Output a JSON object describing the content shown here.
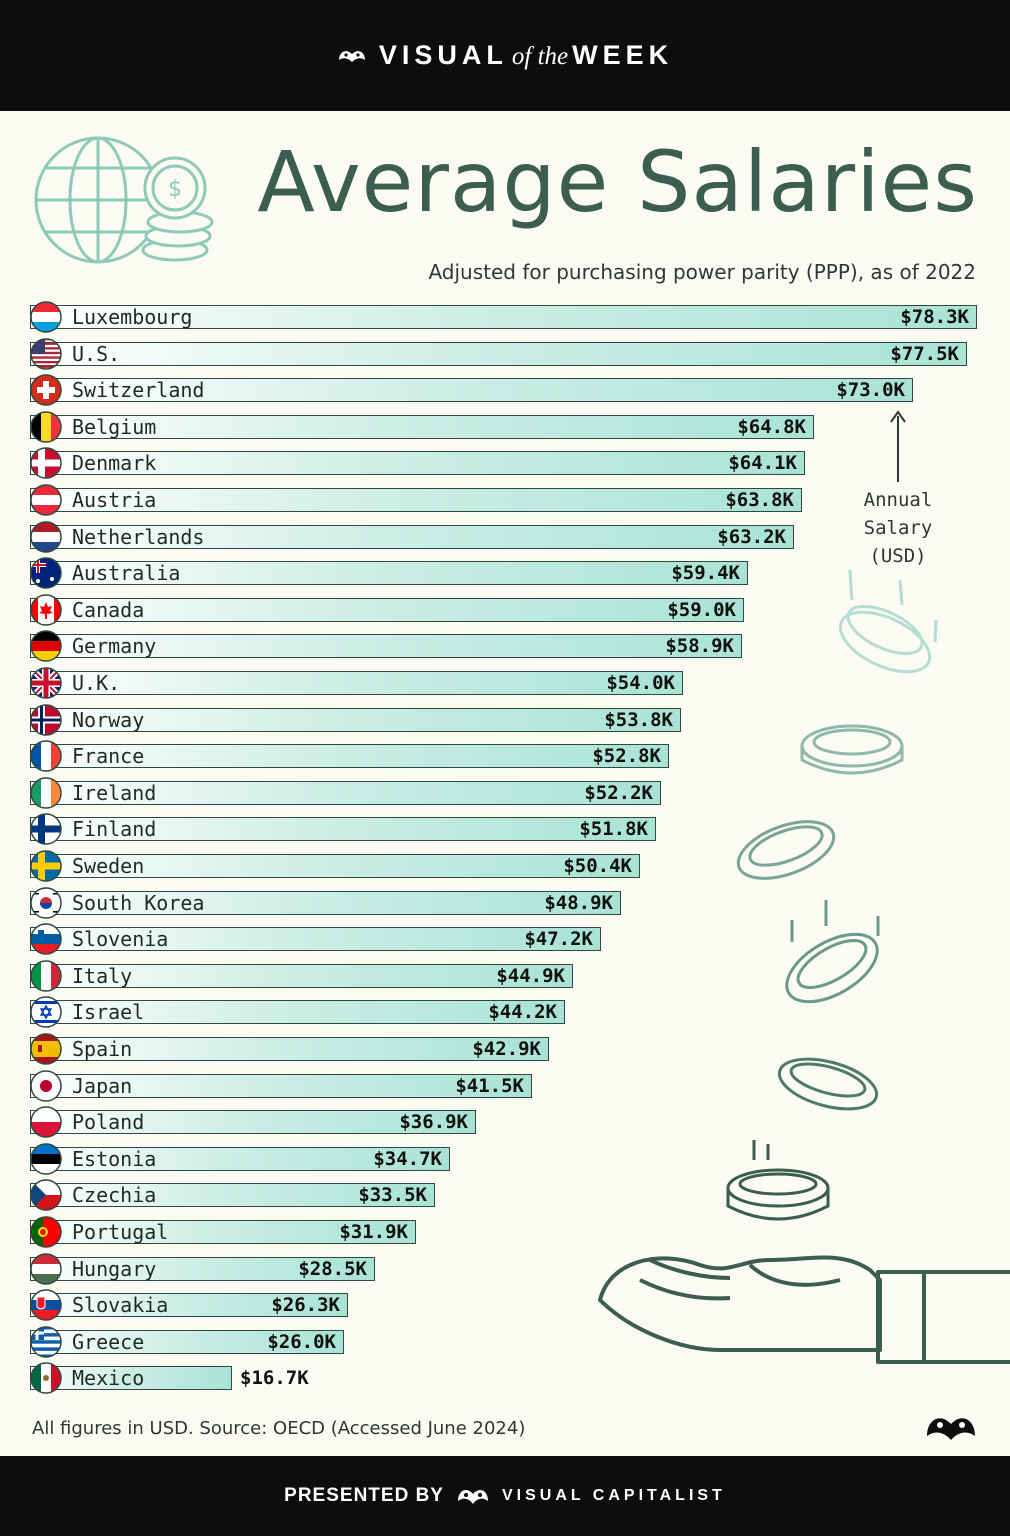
{
  "header": {
    "brand_left": "VISUAL",
    "brand_mid": "of the",
    "brand_right": "WEEK"
  },
  "title": "Average Salaries",
  "subtitle": "Adjusted for purchasing power parity (PPP), as of 2022",
  "annotation": {
    "line1": "Annual",
    "line2": "Salary (USD)"
  },
  "footnote": "All figures in USD. Source: OECD (Accessed June 2024)",
  "footer": {
    "presented_by": "PRESENTED BY",
    "company": "VISUAL CAPITALIST"
  },
  "colors": {
    "bar_start": "#ffffff",
    "bar_end": "#a9e3d4",
    "title": "#3b5e50",
    "outline": "#2e4a3f",
    "banner": "#0d0d0d"
  },
  "chart_data": {
    "type": "bar",
    "orientation": "horizontal",
    "title": "Average Salaries",
    "subtitle": "Adjusted for purchasing power parity (PPP), as of 2022",
    "unit": "USD thousands",
    "xlim": [
      0,
      78.3
    ],
    "categories": [
      "Luxembourg",
      "U.S.",
      "Switzerland",
      "Belgium",
      "Denmark",
      "Austria",
      "Netherlands",
      "Australia",
      "Canada",
      "Germany",
      "U.K.",
      "Norway",
      "France",
      "Ireland",
      "Finland",
      "Sweden",
      "South Korea",
      "Slovenia",
      "Italy",
      "Israel",
      "Spain",
      "Japan",
      "Poland",
      "Estonia",
      "Czechia",
      "Portugal",
      "Hungary",
      "Slovakia",
      "Greece",
      "Mexico"
    ],
    "values": [
      78.3,
      77.5,
      73.0,
      64.8,
      64.1,
      63.8,
      63.2,
      59.4,
      59.0,
      58.9,
      54.0,
      53.8,
      52.8,
      52.2,
      51.8,
      50.4,
      48.9,
      47.2,
      44.9,
      44.2,
      42.9,
      41.5,
      36.9,
      34.7,
      33.5,
      31.9,
      28.5,
      26.3,
      26.0,
      16.7
    ],
    "labels": [
      "$78.3K",
      "$77.5K",
      "$73.0K",
      "$64.8K",
      "$64.1K",
      "$63.8K",
      "$63.2K",
      "$59.4K",
      "$59.0K",
      "$58.9K",
      "$54.0K",
      "$53.8K",
      "$52.8K",
      "$52.2K",
      "$51.8K",
      "$50.4K",
      "$48.9K",
      "$47.2K",
      "$44.9K",
      "$44.2K",
      "$42.9K",
      "$41.5K",
      "$36.9K",
      "$34.7K",
      "$33.5K",
      "$31.9K",
      "$28.5K",
      "$26.3K",
      "$26.0K",
      "$16.7K"
    ],
    "flags": [
      "luxembourg-flag-icon",
      "us-flag-icon",
      "switzerland-flag-icon",
      "belgium-flag-icon",
      "denmark-flag-icon",
      "austria-flag-icon",
      "netherlands-flag-icon",
      "australia-flag-icon",
      "canada-flag-icon",
      "germany-flag-icon",
      "uk-flag-icon",
      "norway-flag-icon",
      "france-flag-icon",
      "ireland-flag-icon",
      "finland-flag-icon",
      "sweden-flag-icon",
      "south-korea-flag-icon",
      "slovenia-flag-icon",
      "italy-flag-icon",
      "israel-flag-icon",
      "spain-flag-icon",
      "japan-flag-icon",
      "poland-flag-icon",
      "estonia-flag-icon",
      "czechia-flag-icon",
      "portugal-flag-icon",
      "hungary-flag-icon",
      "slovakia-flag-icon",
      "greece-flag-icon",
      "mexico-flag-icon"
    ]
  }
}
